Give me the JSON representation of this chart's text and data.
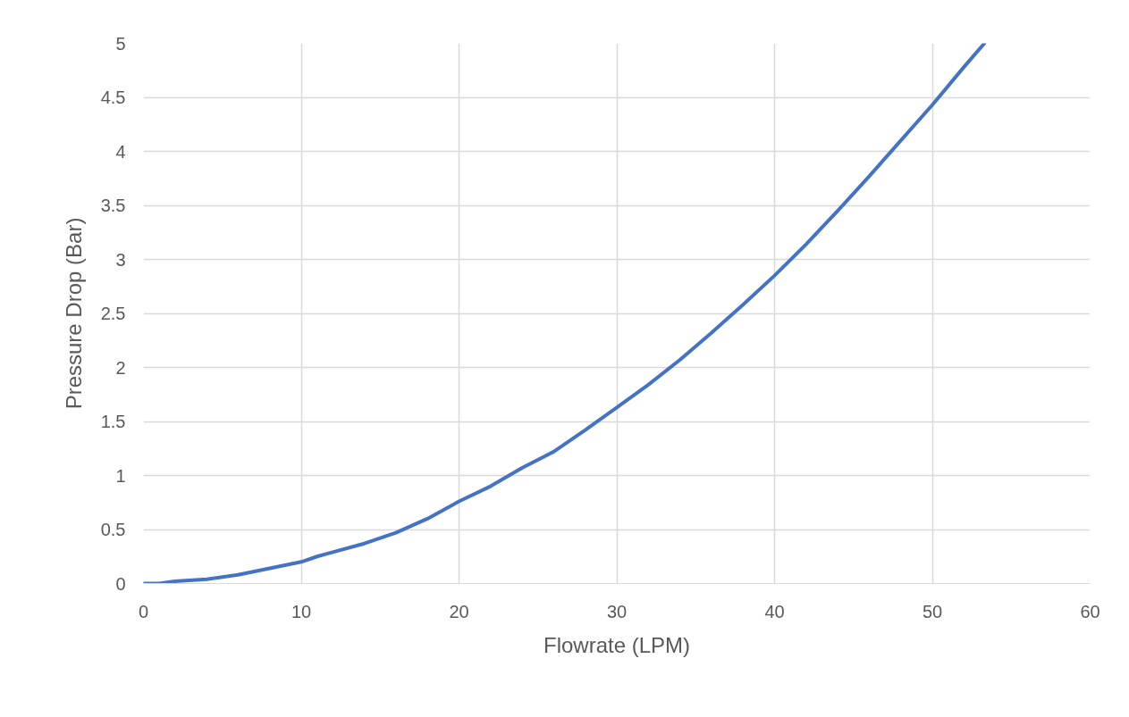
{
  "chart_data": {
    "type": "line",
    "xlabel": "Flowrate (LPM)",
    "ylabel": "Pressure Drop (Bar)",
    "x": [
      0,
      1,
      2,
      4,
      6,
      8,
      10,
      11,
      12,
      14,
      16,
      18,
      20,
      22,
      24,
      26,
      28,
      30,
      32,
      34,
      36,
      38,
      40,
      42,
      44,
      46,
      48,
      50,
      52,
      53.3
    ],
    "series": [
      {
        "color": "#4472c4",
        "values": [
          0,
          0,
          0.02,
          0.04,
          0.08,
          0.14,
          0.2,
          0.25,
          0.29,
          0.37,
          0.47,
          0.6,
          0.76,
          0.9,
          1.07,
          1.22,
          1.42,
          1.63,
          1.84,
          2.07,
          2.32,
          2.58,
          2.85,
          3.14,
          3.45,
          3.77,
          4.1,
          4.43,
          4.78,
          5
        ]
      }
    ],
    "xlim": [
      0,
      60
    ],
    "ylim": [
      0,
      5
    ],
    "xticks": [
      0,
      10,
      20,
      30,
      40,
      50,
      60
    ],
    "yticks": [
      0,
      0.5,
      1,
      1.5,
      2,
      2.5,
      3,
      3.5,
      4,
      4.5,
      5
    ],
    "grid": true,
    "marker": "none",
    "line_style": "solid"
  }
}
